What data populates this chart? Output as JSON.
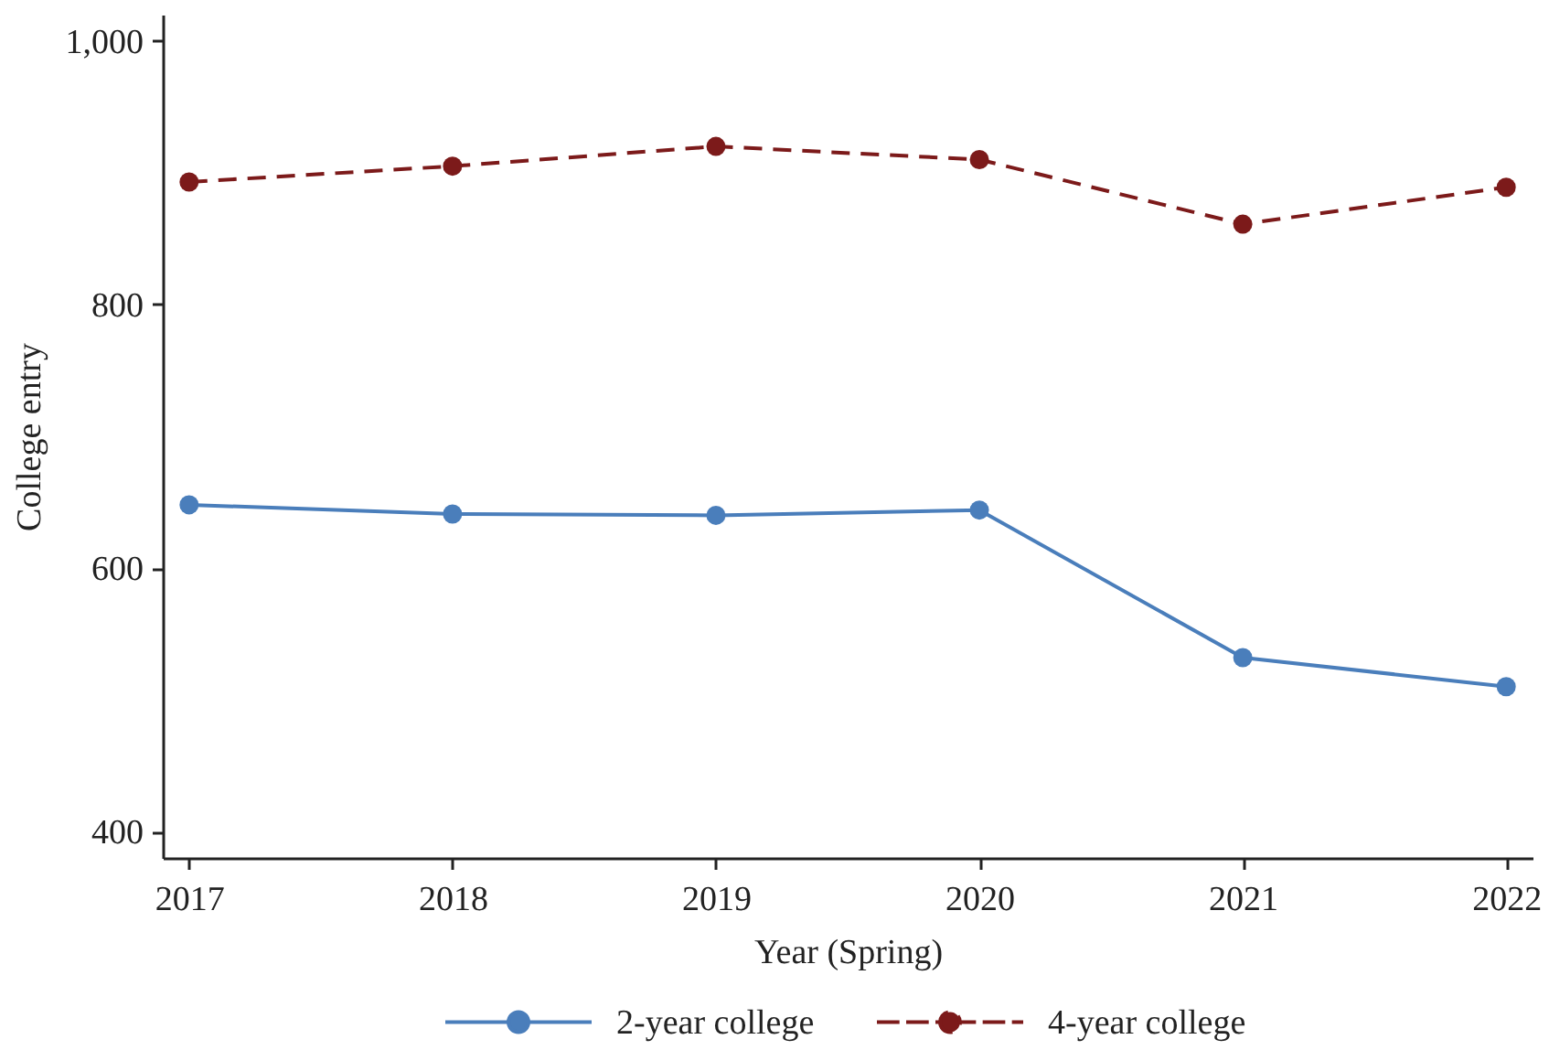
{
  "chart_data": {
    "type": "line",
    "xlabel": "Year (Spring)",
    "ylabel": "College entry",
    "x": [
      2017,
      2018,
      2019,
      2020,
      2021,
      2022
    ],
    "xlim": [
      2016.9,
      2022.1
    ],
    "xticks": [
      2017,
      2018,
      2019,
      2020,
      2021,
      2022
    ],
    "ylim": [
      380,
      1020
    ],
    "yticks": [
      400,
      600,
      800,
      {
        "value": 1000,
        "label": "1,000"
      }
    ],
    "legend": "bottom",
    "marker": "circle",
    "series": [
      {
        "name": "2-year college",
        "color": "#4a7ebb",
        "line_style": "solid",
        "values": [
          648,
          641,
          640,
          644,
          532,
          510
        ]
      },
      {
        "name": "4-year college",
        "color": "#7c1a1a",
        "line_style": "dashed",
        "values": [
          893,
          905,
          920,
          910,
          861,
          889
        ]
      }
    ]
  }
}
